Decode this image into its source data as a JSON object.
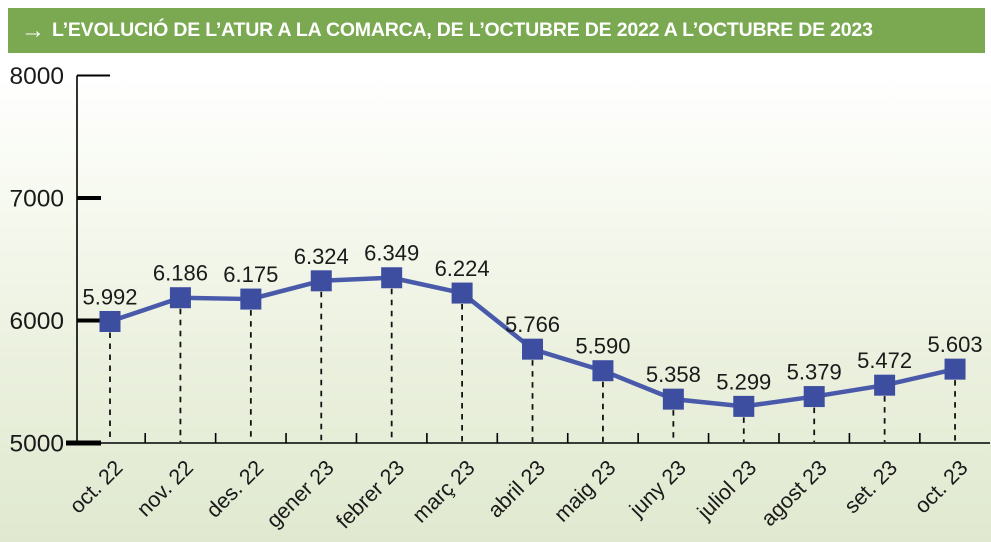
{
  "header": {
    "arrow": "→",
    "title": "L’EVOLUCIÓ DE L’ATUR A LA COMARCA, DE L’OCTUBRE DE 2022 A L’OCTUBRE DE 2023",
    "bg_color": "#7aa951",
    "text_color": "#ffffff"
  },
  "chart_data": {
    "type": "line",
    "title": "L’EVOLUCIÓ DE L’ATUR A LA COMARCA, DE L’OCTUBRE DE 2022 A L’OCTUBRE DE 2023",
    "categories": [
      "oct. 22",
      "nov. 22",
      "des. 22",
      "gener 23",
      "febrer 23",
      "març 23",
      "abril 23",
      "maig 23",
      "juny 23",
      "juliol 23",
      "agost 23",
      "set. 23",
      "oct. 23"
    ],
    "values": [
      5992,
      6186,
      6175,
      6324,
      6349,
      6224,
      5766,
      5590,
      5358,
      5299,
      5379,
      5472,
      5603
    ],
    "point_labels": [
      "5.992",
      "6.186",
      "6.175",
      "6.324",
      "6.349",
      "6.224",
      "5.766",
      "5.590",
      "5.358",
      "5.299",
      "5.379",
      "5.472",
      "5.603"
    ],
    "xlabel": "",
    "ylabel": "",
    "ylim": [
      5000,
      8000
    ],
    "yticks": [
      5000,
      6000,
      7000,
      8000
    ],
    "grid": false,
    "legend": "none",
    "dashed_droplines": true,
    "line_color": "#4a5aab",
    "marker": "square",
    "marker_color": "#3d4da0",
    "axis_color": "#000000",
    "label_color": "#1a1a1a",
    "tick_label_color": "#1a1a1a"
  }
}
